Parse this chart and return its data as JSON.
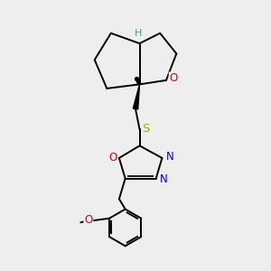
{
  "background_color": "#eeeeee",
  "figsize": [
    3.0,
    3.0
  ],
  "dpi": 100,
  "atom_colors": {
    "C": "#000000",
    "H": "#4a9999",
    "O": "#dd0000",
    "N": "#0000ee",
    "S": "#aaaa00"
  },
  "bond_color": "#000000",
  "bond_width": 1.4,
  "font_size_atom": 8.5,
  "font_size_H": 8.0
}
